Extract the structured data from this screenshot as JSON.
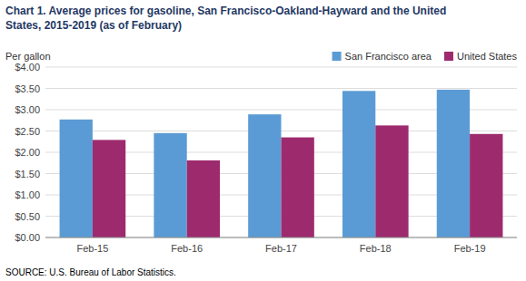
{
  "chart_data": {
    "type": "bar",
    "title": "Chart 1. Average prices for gasoline, San Francisco-Oakland-Hayward and the United",
    "subtitle": "States, 2015-2019  (as of February)",
    "y_label": "Per gallon",
    "annotations": [
      "SOURCE: U.S. Bureau of Labor Statistics."
    ],
    "categories": [
      "Feb-15",
      "Feb-16",
      "Feb-17",
      "Feb-18",
      "Feb-19"
    ],
    "series": [
      {
        "name": "San Francisco area",
        "color": "#5B9BD5",
        "values": [
          2.77,
          2.45,
          2.89,
          3.44,
          3.47
        ]
      },
      {
        "name": "United States",
        "color": "#9E2A6E",
        "values": [
          2.29,
          1.81,
          2.35,
          2.63,
          2.43
        ]
      }
    ],
    "ylim": [
      0,
      4.0
    ],
    "yticks": [
      {
        "value": 0.0,
        "label": "$0.00"
      },
      {
        "value": 0.5,
        "label": "$0.50"
      },
      {
        "value": 1.0,
        "label": "$1.00"
      },
      {
        "value": 1.5,
        "label": "$1.50"
      },
      {
        "value": 2.0,
        "label": "$2.00"
      },
      {
        "value": 2.5,
        "label": "$2.50"
      },
      {
        "value": 3.0,
        "label": "$3.00"
      },
      {
        "value": 3.5,
        "label": "$3.50"
      },
      {
        "value": 4.0,
        "label": "$4.00"
      }
    ],
    "grid": true,
    "legend": "upper right"
  }
}
